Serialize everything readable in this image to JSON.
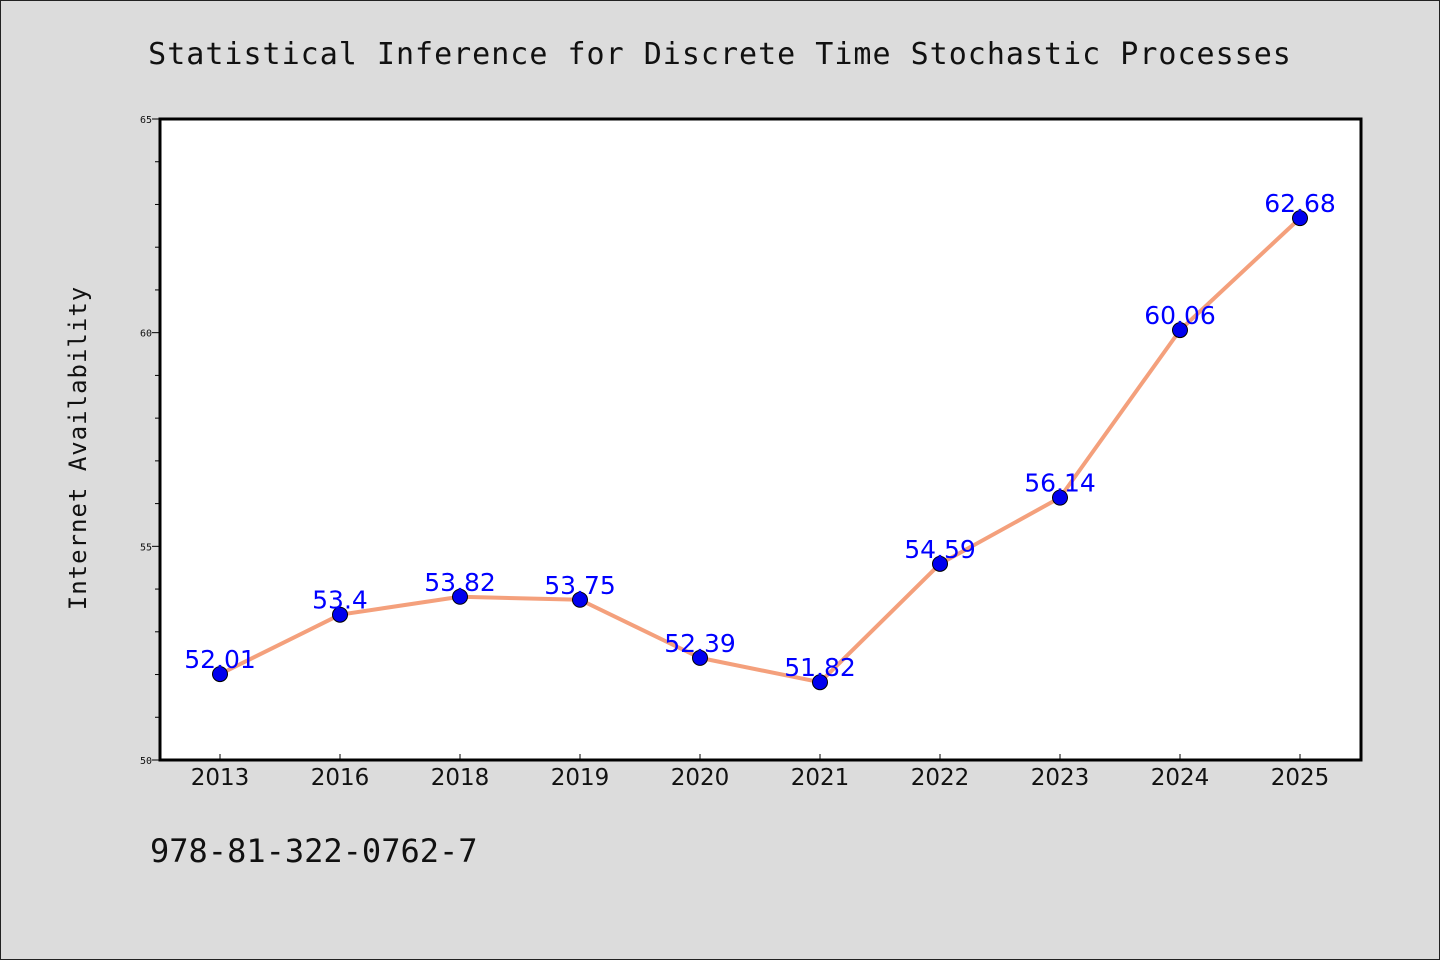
{
  "chart_data": {
    "type": "line",
    "title": "Statistical Inference for Discrete Time Stochastic Processes",
    "xlabel": "",
    "ylabel": "Internet Availability",
    "categories": [
      "2013",
      "2016",
      "2018",
      "2019",
      "2020",
      "2021",
      "2022",
      "2023",
      "2024",
      "2025"
    ],
    "series": [
      {
        "values": [
          52.01,
          53.4,
          53.82,
          53.75,
          52.39,
          51.82,
          54.59,
          56.14,
          60.06,
          62.68
        ],
        "value_labels": [
          "52.01",
          "53.4",
          "53.82",
          "53.75",
          "52.39",
          "51.82",
          "54.59",
          "56.14",
          "60.06",
          "62.68"
        ]
      }
    ],
    "ylim": [
      50,
      65
    ],
    "y_ticks": [
      "50",
      "55",
      "60",
      "65"
    ],
    "grid": false,
    "colors": {
      "line": "#f4a07c",
      "marker": "#0000ee",
      "label": "#0000ff",
      "background": "#dcdcdc",
      "plot_background": "#ffffff"
    }
  },
  "footer": {
    "isbn": "978-81-322-0762-7"
  }
}
